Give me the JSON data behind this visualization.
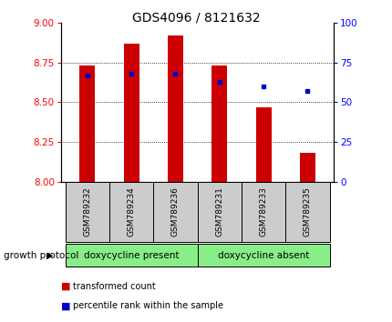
{
  "title": "GDS4096 / 8121632",
  "samples": [
    "GSM789232",
    "GSM789234",
    "GSM789236",
    "GSM789231",
    "GSM789233",
    "GSM789235"
  ],
  "bar_values": [
    8.73,
    8.87,
    8.92,
    8.73,
    8.47,
    8.18
  ],
  "bar_bottom": 8.0,
  "bar_color": "#cc0000",
  "dot_percentiles": [
    67,
    68,
    68,
    63,
    60,
    57
  ],
  "dot_color": "#0000cc",
  "ylim_left": [
    8.0,
    9.0
  ],
  "ylim_right": [
    0,
    100
  ],
  "yticks_left": [
    8.0,
    8.25,
    8.5,
    8.75,
    9.0
  ],
  "yticks_right": [
    0,
    25,
    50,
    75,
    100
  ],
  "grid_lines": [
    8.25,
    8.5,
    8.75
  ],
  "group1_label": "doxycycline present",
  "group2_label": "doxycycline absent",
  "group1_indices": [
    0,
    1,
    2
  ],
  "group2_indices": [
    3,
    4,
    5
  ],
  "group_label_prefix": "growth protocol",
  "legend_bar_label": "transformed count",
  "legend_dot_label": "percentile rank within the sample",
  "group_bg_color": "#88ee88",
  "sample_bg_color": "#cccccc",
  "plot_bg_color": "#ffffff",
  "bar_width": 0.35
}
